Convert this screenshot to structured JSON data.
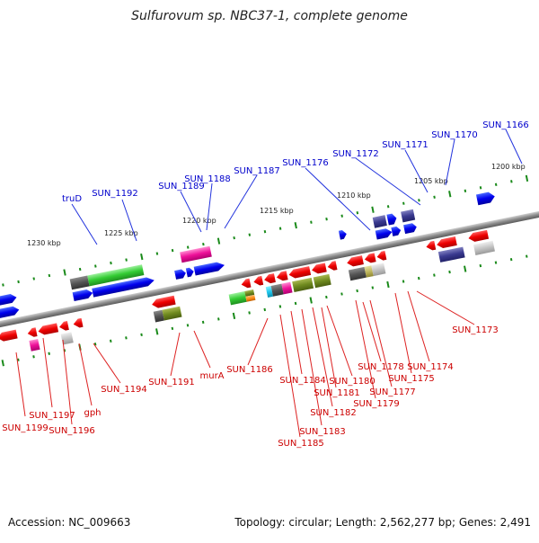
{
  "title": "Sulfurovum sp. NBC37-1, complete genome",
  "footer": {
    "accession": "Accession: NC_009663",
    "summary": "Topology: circular; Length: 2,562,277 bp; Genes: 2,491"
  },
  "kbp_labels": [
    "1230 kbp",
    "1225 kbp",
    "1220 kbp",
    "1215 kbp",
    "1210 kbp",
    "1205 kbp",
    "1200 kbp"
  ],
  "plus_strand_labels": [
    "truD",
    "SUN_1192",
    "SUN_1189",
    "SUN_1188",
    "SUN_1187",
    "SUN_1176",
    "SUN_1172",
    "SUN_1171",
    "SUN_1170",
    "SUN_1166"
  ],
  "minus_strand_labels": [
    "SUN_1199",
    "SUN_1197",
    "SUN_1196",
    "gph",
    "SUN_1194",
    "SUN_1191",
    "murA",
    "SUN_1186",
    "SUN_1185",
    "SUN_1184",
    "SUN_1183",
    "SUN_1182",
    "SUN_1181",
    "SUN_1180",
    "SUN_1179",
    "SUN_1178",
    "SUN_1177",
    "SUN_1175",
    "SUN_1174",
    "SUN_1173"
  ],
  "colors": {
    "plus_label": "#0000cc",
    "minus_label": "#cc0000",
    "backbone": "#888888",
    "tick": "#1a8a1a"
  }
}
